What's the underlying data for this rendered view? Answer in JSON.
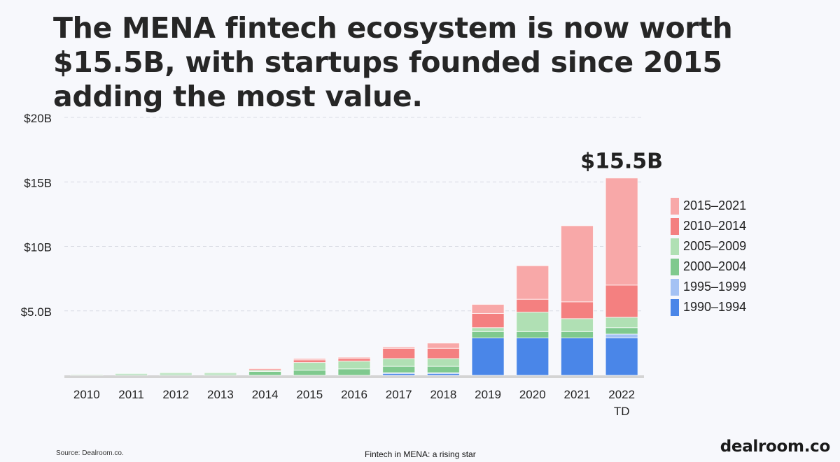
{
  "title": "The MENA fintech ecosystem is now worth $15.5B, with startups founded since 2015 adding the most value.",
  "chart_data": {
    "type": "bar",
    "stacked": true,
    "categories": [
      "2010",
      "2011",
      "2012",
      "2013",
      "2014",
      "2015",
      "2016",
      "2017",
      "2018",
      "2019",
      "2020",
      "2021",
      "2022"
    ],
    "category_sublabels": [
      "",
      "",
      "",
      "",
      "",
      "",
      "",
      "",
      "",
      "",
      "",
      "",
      "TD"
    ],
    "series": [
      {
        "name": "1990–1994",
        "color": "#4a86e8",
        "values": [
          0,
          0,
          0,
          0,
          0,
          0,
          0,
          0.15,
          0.15,
          2.9,
          2.9,
          2.9,
          2.9
        ]
      },
      {
        "name": "1995–1999",
        "color": "#a4c2f4",
        "values": [
          0,
          0,
          0,
          0,
          0,
          0,
          0,
          0.05,
          0.05,
          0,
          0,
          0,
          0.3
        ]
      },
      {
        "name": "2000–2004",
        "color": "#7fc98e",
        "values": [
          0.05,
          0.1,
          0.1,
          0.1,
          0.3,
          0.4,
          0.5,
          0.5,
          0.5,
          0.5,
          0.5,
          0.5,
          0.5
        ]
      },
      {
        "name": "2005–2009",
        "color": "#b0e0b4",
        "values": [
          0,
          0.05,
          0.1,
          0.1,
          0.1,
          0.6,
          0.6,
          0.6,
          0.6,
          0.3,
          1.5,
          1.0,
          0.8
        ]
      },
      {
        "name": "2010–2014",
        "color": "#f48080",
        "values": [
          0,
          0,
          0,
          0,
          0.1,
          0.2,
          0.2,
          0.8,
          0.8,
          1.1,
          1.0,
          1.3,
          2.5
        ]
      },
      {
        "name": "2015–2021",
        "color": "#f8a8a8",
        "values": [
          0,
          0,
          0,
          0,
          0.05,
          0.1,
          0.1,
          0.1,
          0.4,
          0.7,
          2.6,
          5.9,
          8.3
        ]
      }
    ],
    "legend_order": [
      "2015–2021",
      "2010–2014",
      "2005–2009",
      "2000–2004",
      "1995–1999",
      "1990–1994"
    ],
    "yticks": [
      {
        "value": 5,
        "label": "$5.0B"
      },
      {
        "value": 10,
        "label": "$10B"
      },
      {
        "value": 15,
        "label": "$15B"
      },
      {
        "value": 20,
        "label": "$20B"
      }
    ],
    "ylim": [
      0,
      20
    ],
    "annotation": {
      "category": "2022",
      "text": "$15.5B"
    },
    "grid": true,
    "legend_position": "right"
  },
  "footer": {
    "source": "Source: Dealroom.co.",
    "caption": "Fintech in MENA: a rising star",
    "brand": "dealroom.co"
  }
}
